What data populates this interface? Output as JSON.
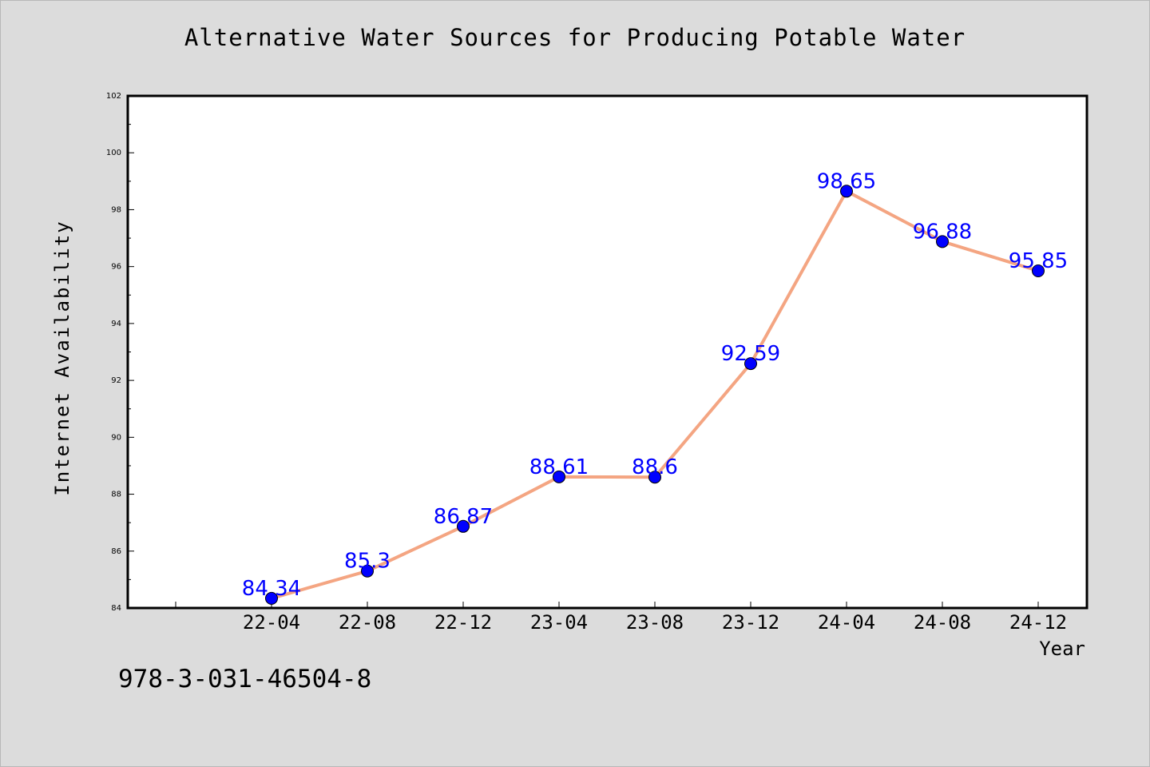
{
  "chart_data": {
    "type": "line",
    "title": "Alternative Water Sources for Producing Potable Water",
    "xlabel": "Year",
    "ylabel": "Internet Availability",
    "categories": [
      "22-04",
      "22-08",
      "22-12",
      "23-04",
      "23-08",
      "23-12",
      "24-04",
      "24-08",
      "24-12"
    ],
    "series": [
      {
        "values": [
          84.34,
          85.3,
          86.87,
          88.61,
          88.6,
          92.59,
          98.65,
          96.88,
          95.85
        ],
        "labels": [
          "84.34",
          "85.3",
          "86.87",
          "88.61",
          "88.6",
          "92.59",
          "98.65",
          "96.88",
          "95.85"
        ]
      }
    ],
    "ylim": [
      84,
      102
    ],
    "yticks": [
      84,
      86,
      88,
      90,
      92,
      94,
      96,
      98,
      100,
      102
    ],
    "grid": false,
    "line_color": "#f4a582",
    "marker_color": "#0000ff",
    "label_color": "#0000ff"
  },
  "footer": {
    "isbn": "978-3-031-46504-8"
  }
}
